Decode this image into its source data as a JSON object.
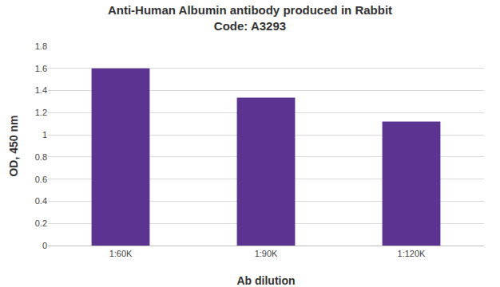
{
  "chart_data": {
    "type": "bar",
    "title": "Anti-Human Albumin antibody produced in Rabbit",
    "subtitle": "Code: A3293",
    "x_label": "Ab dilution",
    "y_label": "OD, 450 nm",
    "categories": [
      "1:60K",
      "1:90K",
      "1:120K"
    ],
    "values": [
      1.6,
      1.335,
      1.12
    ],
    "color": "#5b3391",
    "ylim": [
      0,
      1.8
    ],
    "yticks": [
      0,
      0.2,
      0.4,
      0.6,
      0.8,
      1,
      1.2,
      1.4,
      1.6,
      1.8
    ],
    "grid": true
  }
}
